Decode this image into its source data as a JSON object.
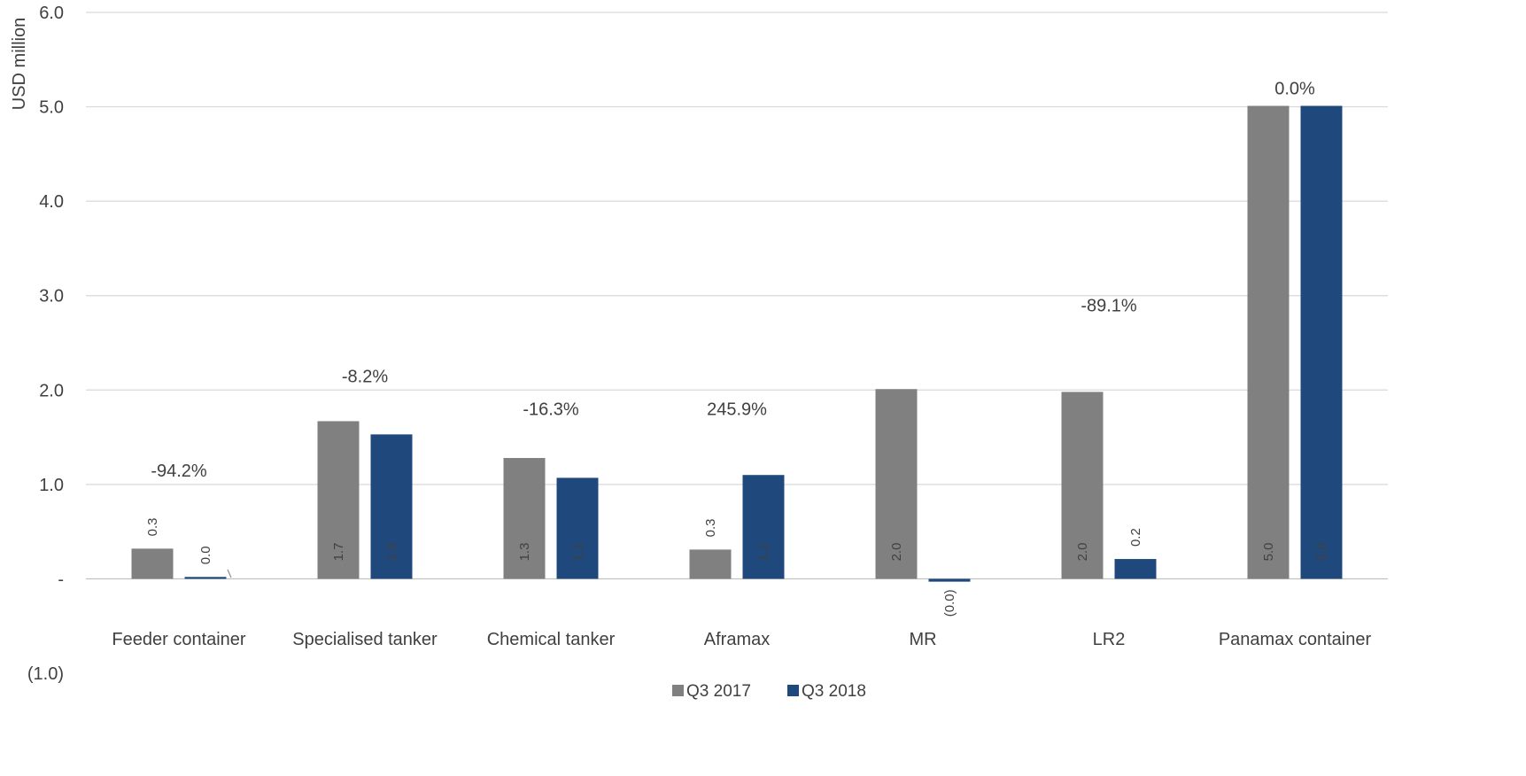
{
  "chart_data": {
    "type": "bar",
    "ylabel": "USD million",
    "ylim": [
      -1.0,
      6.0
    ],
    "y_ticks": [
      {
        "value": 6.0,
        "label": "6.0"
      },
      {
        "value": 5.0,
        "label": "5.0"
      },
      {
        "value": 4.0,
        "label": "4.0"
      },
      {
        "value": 3.0,
        "label": "3.0"
      },
      {
        "value": 2.0,
        "label": "2.0"
      },
      {
        "value": 1.0,
        "label": "1.0"
      },
      {
        "value": 0.0,
        "label": "-"
      },
      {
        "value": -1.0,
        "label": "(1.0)"
      }
    ],
    "grid": true,
    "legend_position": "bottom-center",
    "categories": [
      "Feeder container",
      "Specialised tanker",
      "Chemical tanker",
      "Aframax",
      "MR",
      "LR2",
      "Panamax container"
    ],
    "series": [
      {
        "name": "Q3 2017",
        "color": "#808080",
        "values": [
          0.32,
          1.67,
          1.28,
          0.31,
          2.01,
          1.98,
          5.01
        ],
        "labels": [
          "0.3",
          "1.7",
          "1.3",
          "0.3",
          "2.0",
          "2.0",
          "5.0"
        ]
      },
      {
        "name": "Q3 2018",
        "color": "#1F497D",
        "values": [
          0.02,
          1.53,
          1.07,
          1.1,
          -0.03,
          0.21,
          5.01
        ],
        "labels": [
          "0.0",
          "1.5",
          "1.1",
          "1.1",
          "(0.0)",
          "0.2",
          "5.0"
        ]
      }
    ],
    "change_labels": [
      "-94.2%",
      "-8.2%",
      "-16.3%",
      "245.9%",
      "",
      "-89.1%",
      "0.0%"
    ],
    "change_label_values": [
      1.15,
      2.15,
      1.8,
      1.8,
      null,
      2.9,
      5.2
    ]
  }
}
